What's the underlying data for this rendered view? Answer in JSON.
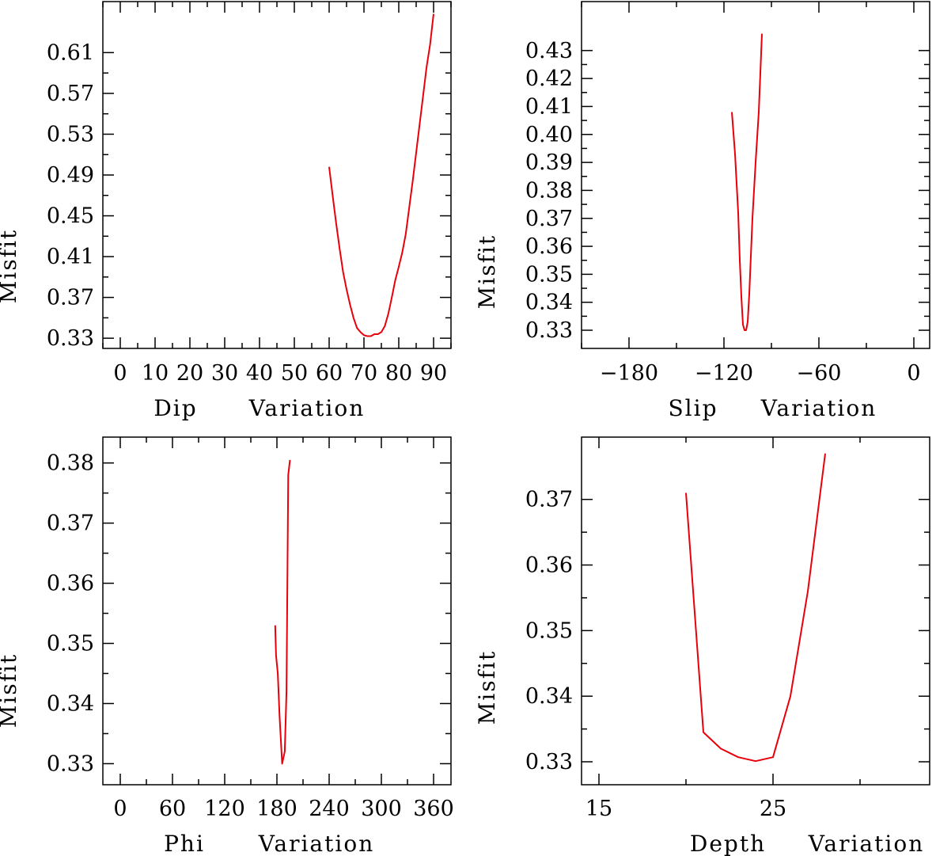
{
  "chart_data": [
    {
      "type": "line",
      "ylabel": "Misfit",
      "xlabel_words": [
        "Dip",
        "Variation"
      ],
      "xlim": [
        -5,
        95
      ],
      "ylim": [
        0.32,
        0.66
      ],
      "xticks": [
        0,
        10,
        20,
        30,
        40,
        50,
        60,
        70,
        80,
        90
      ],
      "xtick_labels": [
        "0",
        "10",
        "20",
        "30",
        "40",
        "50",
        "60",
        "70",
        "80",
        "90"
      ],
      "yticks": [
        0.33,
        0.37,
        0.41,
        0.45,
        0.49,
        0.53,
        0.57,
        0.61
      ],
      "ytick_labels": [
        "0.33",
        "0.37",
        "0.41",
        "0.45",
        "0.49",
        "0.53",
        "0.57",
        "0.61"
      ],
      "series": [
        {
          "name": "Misfit",
          "color": "#e8000b",
          "x": [
            60,
            61,
            62,
            63,
            64,
            65,
            66,
            67,
            68,
            69,
            70,
            71,
            72,
            73,
            74,
            75,
            76,
            77,
            78,
            79,
            80,
            81,
            82,
            83,
            84,
            85,
            86,
            87,
            88,
            89,
            90
          ],
          "y": [
            0.498,
            0.47,
            0.443,
            0.418,
            0.395,
            0.378,
            0.363,
            0.35,
            0.34,
            0.336,
            0.333,
            0.332,
            0.332,
            0.334,
            0.334,
            0.336,
            0.342,
            0.354,
            0.37,
            0.387,
            0.4,
            0.414,
            0.432,
            0.458,
            0.484,
            0.512,
            0.54,
            0.568,
            0.596,
            0.618,
            0.648
          ]
        }
      ]
    },
    {
      "type": "line",
      "ylabel": "Misfit",
      "xlabel_words": [
        "Slip",
        "Variation"
      ],
      "xlim": [
        -210,
        10
      ],
      "ylim": [
        0.3235,
        0.4475
      ],
      "xticks": [
        -180,
        -120,
        -60,
        0
      ],
      "xtick_labels": [
        "−180",
        "−120",
        "−60",
        "0"
      ],
      "yticks": [
        0.33,
        0.34,
        0.35,
        0.36,
        0.37,
        0.38,
        0.39,
        0.4,
        0.41,
        0.42,
        0.43
      ],
      "ytick_labels": [
        "0.33",
        "0.34",
        "0.35",
        "0.36",
        "0.37",
        "0.38",
        "0.39",
        "0.40",
        "0.41",
        "0.42",
        "0.43"
      ],
      "series": [
        {
          "name": "Misfit",
          "color": "#e8000b",
          "x": [
            -115,
            -113,
            -111,
            -110,
            -109,
            -108,
            -107,
            -106,
            -105,
            -104,
            -102,
            -100,
            -98,
            -96
          ],
          "y": [
            0.408,
            0.393,
            0.372,
            0.355,
            0.342,
            0.332,
            0.33,
            0.33,
            0.333,
            0.343,
            0.37,
            0.39,
            0.408,
            0.436
          ]
        }
      ]
    },
    {
      "type": "line",
      "ylabel": "Misfit",
      "xlabel_words": [
        "Phi",
        "Variation"
      ],
      "xlim": [
        -20,
        380
      ],
      "ylim": [
        0.3265,
        0.3843
      ],
      "xticks": [
        0,
        60,
        120,
        180,
        240,
        300,
        360
      ],
      "xtick_labels": [
        "0",
        "60",
        "120",
        "180",
        "240",
        "300",
        "360"
      ],
      "yticks": [
        0.33,
        0.34,
        0.35,
        0.36,
        0.37,
        0.38
      ],
      "ytick_labels": [
        "0.33",
        "0.34",
        "0.35",
        "0.36",
        "0.37",
        "0.38"
      ],
      "series": [
        {
          "name": "Misfit",
          "color": "#e8000b",
          "x": [
            178,
            179,
            181,
            183,
            186,
            189,
            191,
            192,
            193,
            195
          ],
          "y": [
            0.353,
            0.348,
            0.345,
            0.338,
            0.33,
            0.332,
            0.342,
            0.36,
            0.378,
            0.3805
          ]
        }
      ]
    },
    {
      "type": "line",
      "ylabel": "Misfit",
      "xlabel_words": [
        "Depth",
        "Variation"
      ],
      "xlim": [
        14,
        34
      ],
      "ylim": [
        0.3265,
        0.3795
      ],
      "xticks": [
        15,
        25
      ],
      "xtick_labels": [
        "15",
        "25"
      ],
      "yticks": [
        0.33,
        0.34,
        0.35,
        0.36,
        0.37
      ],
      "ytick_labels": [
        "0.33",
        "0.34",
        "0.35",
        "0.36",
        "0.37"
      ],
      "series": [
        {
          "name": "Misfit",
          "color": "#e8000b",
          "x": [
            20,
            21,
            22,
            23,
            24,
            25,
            26,
            27,
            28
          ],
          "y": [
            0.371,
            0.3345,
            0.332,
            0.3307,
            0.3301,
            0.3307,
            0.34,
            0.356,
            0.377
          ]
        }
      ]
    }
  ]
}
